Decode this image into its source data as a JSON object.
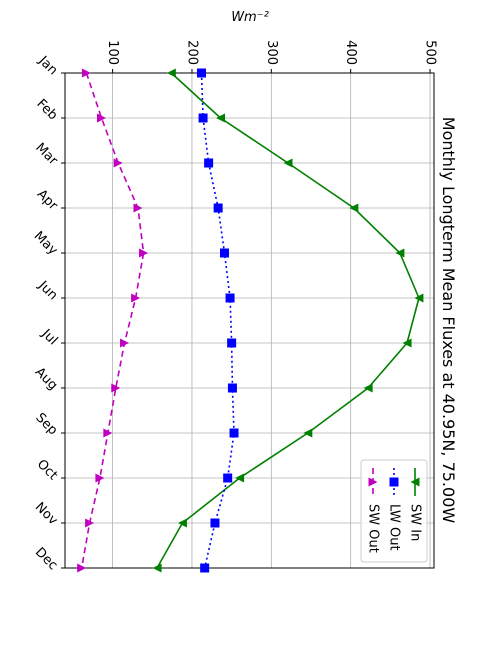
{
  "chart_data": {
    "type": "line",
    "title": "Monthly Longterm Mean Fluxes at 40.95N, 75.00W",
    "ylabel": "Wm⁻²",
    "categories": [
      "Jan",
      "Feb",
      "Mar",
      "Apr",
      "May",
      "Jun",
      "Jul",
      "Aug",
      "Sep",
      "Oct",
      "Nov",
      "Dec"
    ],
    "series": [
      {
        "name": "SW In",
        "color": "#008000",
        "marker": "<",
        "linestyle": "solid",
        "values": [
          174,
          236,
          321,
          404,
          462,
          486,
          471,
          422,
          346,
          260,
          188,
          156
        ]
      },
      {
        "name": "LW Out",
        "color": "#0000ff",
        "marker": "s",
        "linestyle": "dotted",
        "values": [
          212,
          214,
          221,
          233,
          241,
          248,
          250,
          251,
          253,
          245,
          229,
          216
        ]
      },
      {
        "name": "SW Out",
        "color": "#bf00bf",
        "marker": ">",
        "linestyle": "dashed",
        "values": [
          67,
          86,
          107,
          132,
          139,
          129,
          115,
          104,
          94,
          84,
          71,
          61
        ]
      }
    ],
    "ylim": [
      40,
      505
    ],
    "yticks": [
      100,
      200,
      300,
      400,
      500
    ],
    "grid": true,
    "legend": "upper right"
  }
}
